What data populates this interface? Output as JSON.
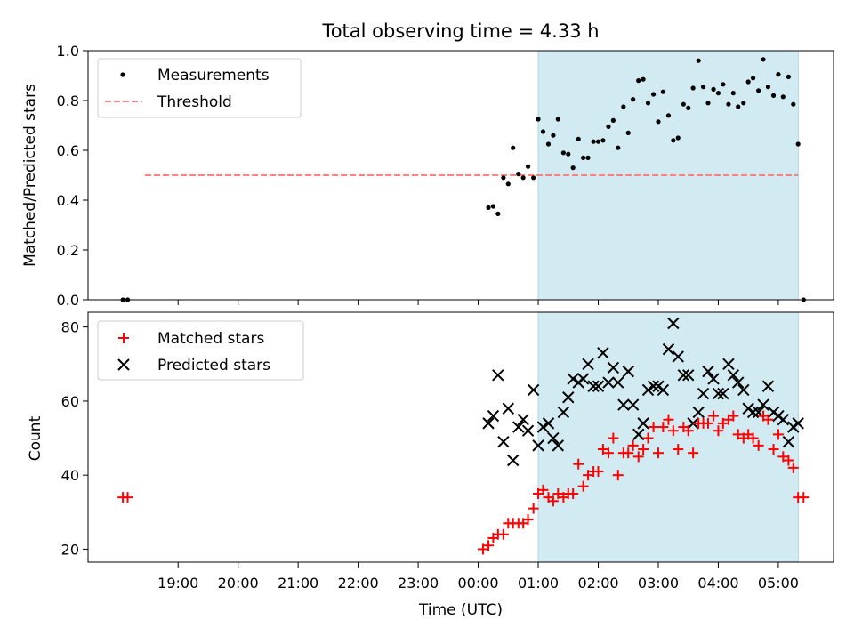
{
  "chart_data": [
    {
      "type": "scatter",
      "title": "Total observing time = 4.33 h",
      "ylabel": "Matched/Predicted stars",
      "xlabel": "",
      "ylim": [
        0.0,
        1.0
      ],
      "yticks": [
        "0.0",
        "0.2",
        "0.4",
        "0.6",
        "0.8",
        "1.0"
      ],
      "shaded_interval": [
        "01:00",
        "05:20"
      ],
      "shaded_color": "#add8e6",
      "legend_position": "top-left",
      "series": [
        {
          "name": "Measurements",
          "marker": "dot",
          "color": "#000000",
          "points": [
            [
              -5.92,
              0.0
            ],
            [
              -5.84,
              0.0
            ],
            [
              0.17,
              0.37
            ],
            [
              0.25,
              0.375
            ],
            [
              0.33,
              0.345
            ],
            [
              0.42,
              0.49
            ],
            [
              0.5,
              0.465
            ],
            [
              0.58,
              0.61
            ],
            [
              0.67,
              0.505
            ],
            [
              0.75,
              0.49
            ],
            [
              0.83,
              0.535
            ],
            [
              0.92,
              0.49
            ],
            [
              1.0,
              0.725
            ],
            [
              1.08,
              0.675
            ],
            [
              1.17,
              0.625
            ],
            [
              1.25,
              0.66
            ],
            [
              1.33,
              0.725
            ],
            [
              1.42,
              0.59
            ],
            [
              1.5,
              0.585
            ],
            [
              1.58,
              0.53
            ],
            [
              1.67,
              0.645
            ],
            [
              1.75,
              0.57
            ],
            [
              1.83,
              0.57
            ],
            [
              1.92,
              0.635
            ],
            [
              2.0,
              0.635
            ],
            [
              2.08,
              0.64
            ],
            [
              2.17,
              0.695
            ],
            [
              2.25,
              0.72
            ],
            [
              2.33,
              0.61
            ],
            [
              2.42,
              0.775
            ],
            [
              2.5,
              0.67
            ],
            [
              2.58,
              0.805
            ],
            [
              2.67,
              0.88
            ],
            [
              2.75,
              0.885
            ],
            [
              2.83,
              0.79
            ],
            [
              2.92,
              0.825
            ],
            [
              3.0,
              0.715
            ],
            [
              3.08,
              0.835
            ],
            [
              3.17,
              0.74
            ],
            [
              3.25,
              0.64
            ],
            [
              3.33,
              0.65
            ],
            [
              3.42,
              0.785
            ],
            [
              3.5,
              0.77
            ],
            [
              3.58,
              0.85
            ],
            [
              3.67,
              0.96
            ],
            [
              3.75,
              0.855
            ],
            [
              3.83,
              0.79
            ],
            [
              3.92,
              0.845
            ],
            [
              4.0,
              0.83
            ],
            [
              4.08,
              0.865
            ],
            [
              4.17,
              0.785
            ],
            [
              4.25,
              0.83
            ],
            [
              4.33,
              0.775
            ],
            [
              4.42,
              0.79
            ],
            [
              4.5,
              0.875
            ],
            [
              4.58,
              0.89
            ],
            [
              4.67,
              0.84
            ],
            [
              4.75,
              0.965
            ],
            [
              4.83,
              0.855
            ],
            [
              4.92,
              0.82
            ],
            [
              5.0,
              0.905
            ],
            [
              5.08,
              0.815
            ],
            [
              5.17,
              0.895
            ],
            [
              5.25,
              0.785
            ],
            [
              5.33,
              0.625
            ],
            [
              5.42,
              0.0
            ]
          ]
        },
        {
          "name": "Threshold",
          "marker": "dashed-line",
          "color": "#ff8080",
          "points": [
            [
              -5.55,
              0.5
            ],
            [
              5.33,
              0.5
            ]
          ]
        }
      ]
    },
    {
      "type": "scatter",
      "title": "",
      "ylabel": "Count",
      "xlabel": "Time (UTC)",
      "ylim": [
        16.5,
        84
      ],
      "yticks": [
        "20",
        "40",
        "60",
        "80"
      ],
      "xticks": [
        "19:00",
        "20:00",
        "21:00",
        "22:00",
        "23:00",
        "00:00",
        "01:00",
        "02:00",
        "03:00",
        "04:00",
        "05:00"
      ],
      "xtick_values": [
        -5,
        -4,
        -3,
        -2,
        -1,
        0,
        1,
        2,
        3,
        4,
        5
      ],
      "xlim": [
        -6.5,
        5.92
      ],
      "shaded_interval": [
        "01:00",
        "05:20"
      ],
      "shaded_color": "#add8e6",
      "legend_position": "top-left",
      "series": [
        {
          "name": "Matched stars",
          "marker": "plus",
          "color": "#ff0000",
          "points": [
            [
              -5.92,
              34
            ],
            [
              -5.84,
              34
            ],
            [
              0.08,
              20
            ],
            [
              0.17,
              21
            ],
            [
              0.25,
              23
            ],
            [
              0.33,
              24
            ],
            [
              0.42,
              24
            ],
            [
              0.5,
              27
            ],
            [
              0.58,
              27
            ],
            [
              0.67,
              27
            ],
            [
              0.75,
              27
            ],
            [
              0.83,
              28
            ],
            [
              0.92,
              31
            ],
            [
              1.0,
              35
            ],
            [
              1.08,
              36
            ],
            [
              1.17,
              34
            ],
            [
              1.25,
              33
            ],
            [
              1.33,
              35
            ],
            [
              1.42,
              34
            ],
            [
              1.5,
              35
            ],
            [
              1.58,
              35
            ],
            [
              1.67,
              43
            ],
            [
              1.75,
              37
            ],
            [
              1.83,
              40
            ],
            [
              1.92,
              41
            ],
            [
              2.0,
              41
            ],
            [
              2.08,
              47
            ],
            [
              2.17,
              46
            ],
            [
              2.25,
              50
            ],
            [
              2.33,
              40
            ],
            [
              2.42,
              46
            ],
            [
              2.5,
              46
            ],
            [
              2.58,
              48
            ],
            [
              2.67,
              45
            ],
            [
              2.75,
              47
            ],
            [
              2.83,
              50
            ],
            [
              2.92,
              53
            ],
            [
              3.0,
              46
            ],
            [
              3.08,
              53
            ],
            [
              3.17,
              55
            ],
            [
              3.25,
              52
            ],
            [
              3.33,
              47
            ],
            [
              3.42,
              53
            ],
            [
              3.5,
              52
            ],
            [
              3.58,
              46
            ],
            [
              3.67,
              54
            ],
            [
              3.75,
              54
            ],
            [
              3.83,
              54
            ],
            [
              3.92,
              56
            ],
            [
              4.0,
              52
            ],
            [
              4.08,
              54
            ],
            [
              4.17,
              55
            ],
            [
              4.25,
              56
            ],
            [
              4.33,
              51
            ],
            [
              4.42,
              50
            ],
            [
              4.5,
              51
            ],
            [
              4.58,
              50
            ],
            [
              4.67,
              48
            ],
            [
              4.75,
              56
            ],
            [
              4.83,
              55
            ],
            [
              4.92,
              47
            ],
            [
              5.0,
              51
            ],
            [
              5.08,
              45
            ],
            [
              5.17,
              44
            ],
            [
              5.25,
              42
            ],
            [
              5.33,
              34
            ],
            [
              5.42,
              34
            ]
          ]
        },
        {
          "name": "Predicted stars",
          "marker": "x",
          "color": "#000000",
          "points": [
            [
              0.17,
              54
            ],
            [
              0.25,
              56
            ],
            [
              0.33,
              67
            ],
            [
              0.42,
              49
            ],
            [
              0.5,
              58
            ],
            [
              0.58,
              44
            ],
            [
              0.67,
              53
            ],
            [
              0.75,
              55
            ],
            [
              0.83,
              52
            ],
            [
              0.92,
              63
            ],
            [
              1.0,
              48
            ],
            [
              1.08,
              53
            ],
            [
              1.17,
              54
            ],
            [
              1.25,
              50
            ],
            [
              1.33,
              48
            ],
            [
              1.42,
              57
            ],
            [
              1.5,
              61
            ],
            [
              1.58,
              66
            ],
            [
              1.67,
              65
            ],
            [
              1.75,
              66
            ],
            [
              1.83,
              70
            ],
            [
              1.92,
              64
            ],
            [
              2.0,
              64
            ],
            [
              2.08,
              73
            ],
            [
              2.17,
              65
            ],
            [
              2.25,
              69
            ],
            [
              2.33,
              65
            ],
            [
              2.42,
              59
            ],
            [
              2.5,
              68
            ],
            [
              2.58,
              59
            ],
            [
              2.67,
              51
            ],
            [
              2.75,
              54
            ],
            [
              2.83,
              63
            ],
            [
              2.92,
              64
            ],
            [
              3.0,
              64
            ],
            [
              3.08,
              63
            ],
            [
              3.17,
              74
            ],
            [
              3.25,
              81
            ],
            [
              3.33,
              72
            ],
            [
              3.42,
              67
            ],
            [
              3.5,
              67
            ],
            [
              3.58,
              54
            ],
            [
              3.67,
              57
            ],
            [
              3.75,
              62
            ],
            [
              3.83,
              68
            ],
            [
              3.92,
              66
            ],
            [
              4.0,
              62
            ],
            [
              4.08,
              62
            ],
            [
              4.17,
              70
            ],
            [
              4.25,
              67
            ],
            [
              4.33,
              65
            ],
            [
              4.42,
              63
            ],
            [
              4.5,
              58
            ],
            [
              4.58,
              57
            ],
            [
              4.67,
              57
            ],
            [
              4.75,
              59
            ],
            [
              4.83,
              64
            ],
            [
              4.92,
              57
            ],
            [
              5.0,
              56
            ],
            [
              5.08,
              55
            ],
            [
              5.17,
              49
            ],
            [
              5.25,
              53
            ],
            [
              5.33,
              54
            ]
          ]
        }
      ]
    }
  ]
}
